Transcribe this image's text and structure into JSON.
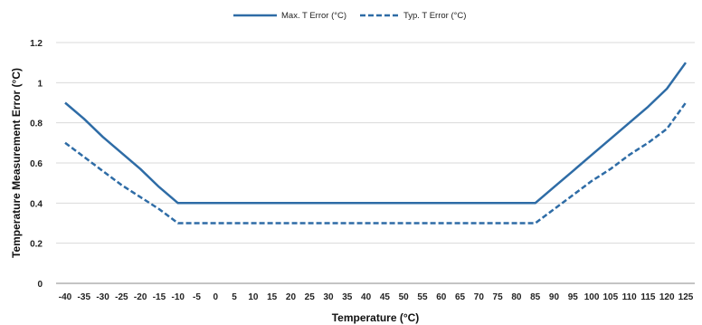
{
  "chart_data": {
    "type": "line",
    "xlabel": "Temperature (°C)",
    "ylabel": "Temperature Measurement Error (°C)",
    "x": [
      -40,
      -35,
      -30,
      -25,
      -20,
      -15,
      -10,
      -5,
      0,
      5,
      10,
      15,
      20,
      25,
      30,
      35,
      40,
      45,
      50,
      55,
      60,
      65,
      70,
      75,
      80,
      85,
      90,
      95,
      100,
      105,
      110,
      115,
      120,
      125
    ],
    "xticklabels": [
      "-40",
      "-35",
      "-30",
      "-25",
      "-20",
      "-15",
      "-10",
      "-5",
      "0",
      "5",
      "10",
      "15",
      "20",
      "25",
      "30",
      "35",
      "40",
      "45",
      "50",
      "55",
      "60",
      "65",
      "70",
      "75",
      "80",
      "85",
      "90",
      "95",
      "100",
      "105",
      "110",
      "115",
      "120",
      "125"
    ],
    "yticks": [
      0,
      0.2,
      0.4,
      0.6,
      0.8,
      1,
      1.2
    ],
    "yticklabels": [
      "0",
      "0.2",
      "0.4",
      "0.6",
      "0.8",
      "1",
      "1.2"
    ],
    "ylim": [
      0,
      1.2
    ],
    "grid": "horizontal",
    "legend": "top-center",
    "series": [
      {
        "name": "Max. T Error (°C)",
        "style": "solid",
        "color": "#2e6ca6",
        "values": [
          0.9,
          0.82,
          0.73,
          0.65,
          0.57,
          0.48,
          0.4,
          0.4,
          0.4,
          0.4,
          0.4,
          0.4,
          0.4,
          0.4,
          0.4,
          0.4,
          0.4,
          0.4,
          0.4,
          0.4,
          0.4,
          0.4,
          0.4,
          0.4,
          0.4,
          0.4,
          0.48,
          0.56,
          0.64,
          0.72,
          0.8,
          0.88,
          0.97,
          1.1
        ]
      },
      {
        "name": "Typ. T Error (°C)",
        "style": "dashed",
        "color": "#2e6ca6",
        "values": [
          0.7,
          0.63,
          0.56,
          0.49,
          0.43,
          0.37,
          0.3,
          0.3,
          0.3,
          0.3,
          0.3,
          0.3,
          0.3,
          0.3,
          0.3,
          0.3,
          0.3,
          0.3,
          0.3,
          0.3,
          0.3,
          0.3,
          0.3,
          0.3,
          0.3,
          0.3,
          0.37,
          0.44,
          0.51,
          0.57,
          0.64,
          0.7,
          0.77,
          0.9
        ]
      }
    ]
  }
}
